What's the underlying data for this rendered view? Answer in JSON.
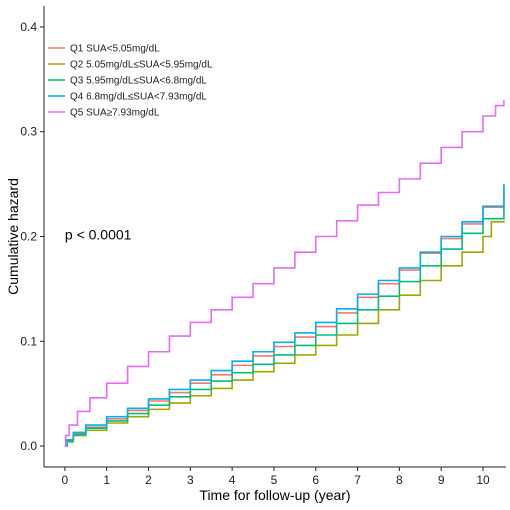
{
  "chart_data": {
    "type": "line",
    "title": "",
    "xlabel": "Time for follow-up (year)",
    "ylabel": "Cumulative hazard",
    "xlim": [
      -0.5,
      10.55
    ],
    "ylim": [
      -0.02,
      0.42
    ],
    "xticks": [
      0,
      1,
      2,
      3,
      4,
      5,
      6,
      7,
      8,
      9,
      10
    ],
    "yticks": [
      0.0,
      0.1,
      0.2,
      0.3,
      0.4
    ],
    "ytick_labels": [
      "0.0",
      "0.1",
      "0.2",
      "0.3",
      "0.4"
    ],
    "grid": false,
    "legend_position": "top-left",
    "annotation": {
      "text": "p < 0.0001",
      "x": 0.0,
      "y": 0.197
    },
    "series": [
      {
        "name": "Q1 SUA<5.05mg/dL",
        "color": "#F8766D",
        "x": [
          0,
          0.05,
          0.2,
          0.5,
          1,
          1.5,
          2,
          2.5,
          3,
          3.5,
          4,
          4.5,
          5,
          5.5,
          6,
          6.5,
          7,
          7.5,
          8,
          8.5,
          9,
          9.5,
          10,
          10.5
        ],
        "y": [
          0,
          0.005,
          0.012,
          0.018,
          0.026,
          0.034,
          0.043,
          0.051,
          0.06,
          0.068,
          0.077,
          0.086,
          0.095,
          0.104,
          0.114,
          0.127,
          0.142,
          0.155,
          0.168,
          0.184,
          0.198,
          0.212,
          0.228,
          0.249
        ]
      },
      {
        "name": "Q2 5.05mg/dL≤SUA<5.95mg/dL",
        "color": "#A3A500",
        "x": [
          0,
          0.05,
          0.2,
          0.5,
          1,
          1.5,
          2,
          2.5,
          3,
          3.5,
          4,
          4.5,
          5,
          5.5,
          6,
          6.5,
          7,
          7.5,
          8,
          8.5,
          9,
          9.5,
          10,
          10.2,
          10.5
        ],
        "y": [
          0,
          0.004,
          0.01,
          0.015,
          0.022,
          0.028,
          0.035,
          0.041,
          0.048,
          0.055,
          0.063,
          0.071,
          0.079,
          0.087,
          0.096,
          0.106,
          0.117,
          0.13,
          0.144,
          0.158,
          0.172,
          0.185,
          0.2,
          0.214,
          0.215
        ]
      },
      {
        "name": "Q3 5.95mg/dL≤SUA<6.8mg/dL",
        "color": "#00BF7D",
        "x": [
          0,
          0.05,
          0.2,
          0.5,
          1,
          1.5,
          2,
          2.5,
          3,
          3.5,
          4,
          4.5,
          5,
          5.5,
          6,
          6.5,
          7,
          7.5,
          8,
          8.5,
          9,
          9.5,
          10,
          10.5
        ],
        "y": [
          0,
          0.005,
          0.011,
          0.017,
          0.024,
          0.031,
          0.039,
          0.047,
          0.054,
          0.062,
          0.07,
          0.078,
          0.087,
          0.096,
          0.106,
          0.117,
          0.13,
          0.143,
          0.157,
          0.172,
          0.188,
          0.203,
          0.217,
          0.228
        ]
      },
      {
        "name": "Q4 6.8mg/dL≤SUA<7.93mg/dL",
        "color": "#00B0F6",
        "x": [
          0,
          0.05,
          0.2,
          0.5,
          1,
          1.5,
          2,
          2.5,
          3,
          3.5,
          4,
          4.5,
          5,
          5.5,
          6,
          6.5,
          7,
          7.5,
          8,
          8.5,
          9,
          9.5,
          10,
          10.5
        ],
        "y": [
          0,
          0.006,
          0.013,
          0.02,
          0.028,
          0.036,
          0.045,
          0.054,
          0.063,
          0.072,
          0.081,
          0.09,
          0.099,
          0.108,
          0.118,
          0.131,
          0.145,
          0.158,
          0.17,
          0.185,
          0.2,
          0.214,
          0.229,
          0.25
        ]
      },
      {
        "name": "Q5 SUA≥7.93mg/dL",
        "color": "#E76BF3",
        "x": [
          0,
          0.02,
          0.1,
          0.3,
          0.6,
          1,
          1.5,
          2,
          2.5,
          3,
          3.5,
          4,
          4.5,
          5,
          5.5,
          6,
          6.5,
          7,
          7.5,
          8,
          8.5,
          9,
          9.5,
          10,
          10.3,
          10.5
        ],
        "y": [
          0,
          0.01,
          0.02,
          0.033,
          0.046,
          0.06,
          0.076,
          0.09,
          0.105,
          0.118,
          0.13,
          0.142,
          0.155,
          0.17,
          0.185,
          0.2,
          0.215,
          0.23,
          0.242,
          0.255,
          0.27,
          0.285,
          0.3,
          0.315,
          0.325,
          0.33
        ]
      }
    ]
  }
}
